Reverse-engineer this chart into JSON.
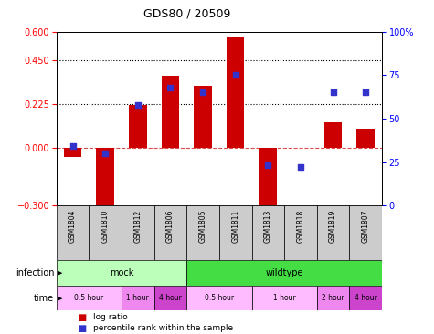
{
  "title": "GDS80 / 20509",
  "samples": [
    "GSM1804",
    "GSM1810",
    "GSM1812",
    "GSM1806",
    "GSM1805",
    "GSM1811",
    "GSM1813",
    "GSM1818",
    "GSM1819",
    "GSM1807"
  ],
  "log_ratio": [
    -0.05,
    -0.32,
    0.22,
    0.37,
    0.32,
    0.575,
    -0.31,
    0.0,
    0.13,
    0.1
  ],
  "percentile": [
    34,
    30,
    58,
    68,
    65,
    75,
    23,
    22,
    65,
    65
  ],
  "ylim_left": [
    -0.3,
    0.6
  ],
  "ylim_right": [
    0,
    100
  ],
  "yticks_left": [
    -0.3,
    0.0,
    0.225,
    0.45,
    0.6
  ],
  "yticks_right": [
    0,
    25,
    50,
    75,
    100
  ],
  "hlines": [
    0.225,
    0.45
  ],
  "bar_color": "#cc0000",
  "dot_color": "#3333cc",
  "zero_line_color": "#cc0000",
  "sample_bg_color": "#cccccc",
  "infection_labels": [
    {
      "label": "mock",
      "start": 0,
      "end": 4,
      "color": "#bbffbb"
    },
    {
      "label": "wildtype",
      "start": 4,
      "end": 10,
      "color": "#44dd44"
    }
  ],
  "time_labels": [
    {
      "label": "0.5 hour",
      "start": 0,
      "end": 2,
      "color": "#ffbbff"
    },
    {
      "label": "1 hour",
      "start": 2,
      "end": 3,
      "color": "#ee88ee"
    },
    {
      "label": "4 hour",
      "start": 3,
      "end": 4,
      "color": "#cc44cc"
    },
    {
      "label": "0.5 hour",
      "start": 4,
      "end": 6,
      "color": "#ffbbff"
    },
    {
      "label": "1 hour",
      "start": 6,
      "end": 8,
      "color": "#ffbbff"
    },
    {
      "label": "2 hour",
      "start": 8,
      "end": 9,
      "color": "#ee88ee"
    },
    {
      "label": "4 hour",
      "start": 9,
      "end": 10,
      "color": "#cc44cc"
    }
  ]
}
